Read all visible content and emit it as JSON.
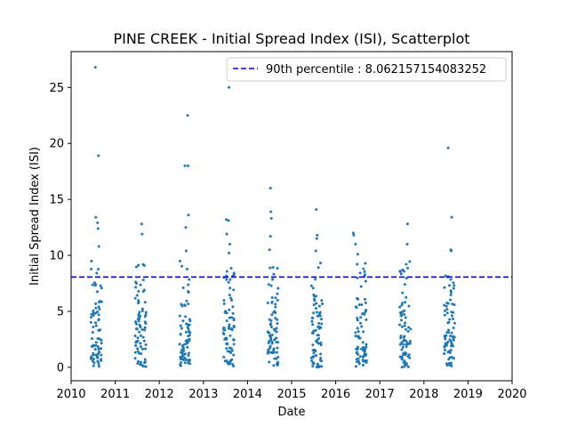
{
  "chart_data": {
    "type": "scatter",
    "title": "PINE CREEK - Initial Spread Index (ISI), Scatterplot",
    "xlabel": "Date",
    "ylabel": "Initial Spread Index (ISI)",
    "xlim": [
      2010,
      2020
    ],
    "ylim": [
      -1.2,
      28.2
    ],
    "x_ticks": [
      "2010",
      "2011",
      "2012",
      "2013",
      "2014",
      "2015",
      "2016",
      "2017",
      "2018",
      "2019",
      "2020"
    ],
    "y_ticks": [
      "0",
      "5",
      "10",
      "15",
      "20",
      "25"
    ],
    "y_tick_values": [
      0,
      5,
      10,
      15,
      20,
      25
    ],
    "legend": {
      "position": "top-right",
      "label": "90th percentile : 8.062157154083252"
    },
    "reference_line": {
      "value": 8.062157154083252,
      "color": "#0000cc",
      "style": "dashed",
      "x_range": [
        2010,
        2020
      ]
    },
    "marker_color": "#1f77b4",
    "seasons": [
      {
        "start": 2010.45,
        "end": 2010.7
      },
      {
        "start": 2011.45,
        "end": 2011.7
      },
      {
        "start": 2012.45,
        "end": 2012.7
      },
      {
        "start": 2013.45,
        "end": 2013.7
      },
      {
        "start": 2014.45,
        "end": 2014.7
      },
      {
        "start": 2015.45,
        "end": 2015.7
      },
      {
        "start": 2016.45,
        "end": 2016.7
      },
      {
        "start": 2017.45,
        "end": 2017.7
      },
      {
        "start": 2018.45,
        "end": 2018.7
      }
    ],
    "outliers": [
      {
        "x": 2010.55,
        "y": 26.8
      },
      {
        "x": 2010.62,
        "y": 18.9
      },
      {
        "x": 2010.56,
        "y": 13.4
      },
      {
        "x": 2010.6,
        "y": 12.9
      },
      {
        "x": 2010.61,
        "y": 12.4
      },
      {
        "x": 2010.63,
        "y": 10.8
      },
      {
        "x": 2011.6,
        "y": 12.8
      },
      {
        "x": 2011.61,
        "y": 11.9
      },
      {
        "x": 2011.48,
        "y": 7.5
      },
      {
        "x": 2012.64,
        "y": 22.5
      },
      {
        "x": 2012.58,
        "y": 18.0
      },
      {
        "x": 2012.65,
        "y": 18.0
      },
      {
        "x": 2012.66,
        "y": 13.6
      },
      {
        "x": 2012.6,
        "y": 12.5
      },
      {
        "x": 2012.61,
        "y": 10.4
      },
      {
        "x": 2013.58,
        "y": 25.0
      },
      {
        "x": 2013.52,
        "y": 13.2
      },
      {
        "x": 2013.57,
        "y": 13.1
      },
      {
        "x": 2013.53,
        "y": 11.9
      },
      {
        "x": 2013.6,
        "y": 11.0
      },
      {
        "x": 2013.58,
        "y": 10.2
      },
      {
        "x": 2014.52,
        "y": 16.0
      },
      {
        "x": 2014.53,
        "y": 13.9
      },
      {
        "x": 2014.54,
        "y": 13.3
      },
      {
        "x": 2014.52,
        "y": 11.7
      },
      {
        "x": 2014.5,
        "y": 10.5
      },
      {
        "x": 2015.56,
        "y": 14.1
      },
      {
        "x": 2015.58,
        "y": 11.8
      },
      {
        "x": 2015.57,
        "y": 11.5
      },
      {
        "x": 2015.55,
        "y": 10.4
      },
      {
        "x": 2016.4,
        "y": 12.0
      },
      {
        "x": 2016.41,
        "y": 11.8
      },
      {
        "x": 2016.45,
        "y": 11.0
      },
      {
        "x": 2016.5,
        "y": 10.1
      },
      {
        "x": 2016.63,
        "y": 8.8
      },
      {
        "x": 2017.63,
        "y": 12.8
      },
      {
        "x": 2017.62,
        "y": 11.0
      },
      {
        "x": 2017.6,
        "y": 9.2
      },
      {
        "x": 2018.55,
        "y": 19.6
      },
      {
        "x": 2018.63,
        "y": 13.4
      },
      {
        "x": 2018.61,
        "y": 10.5
      },
      {
        "x": 2018.62,
        "y": 10.4
      }
    ]
  }
}
